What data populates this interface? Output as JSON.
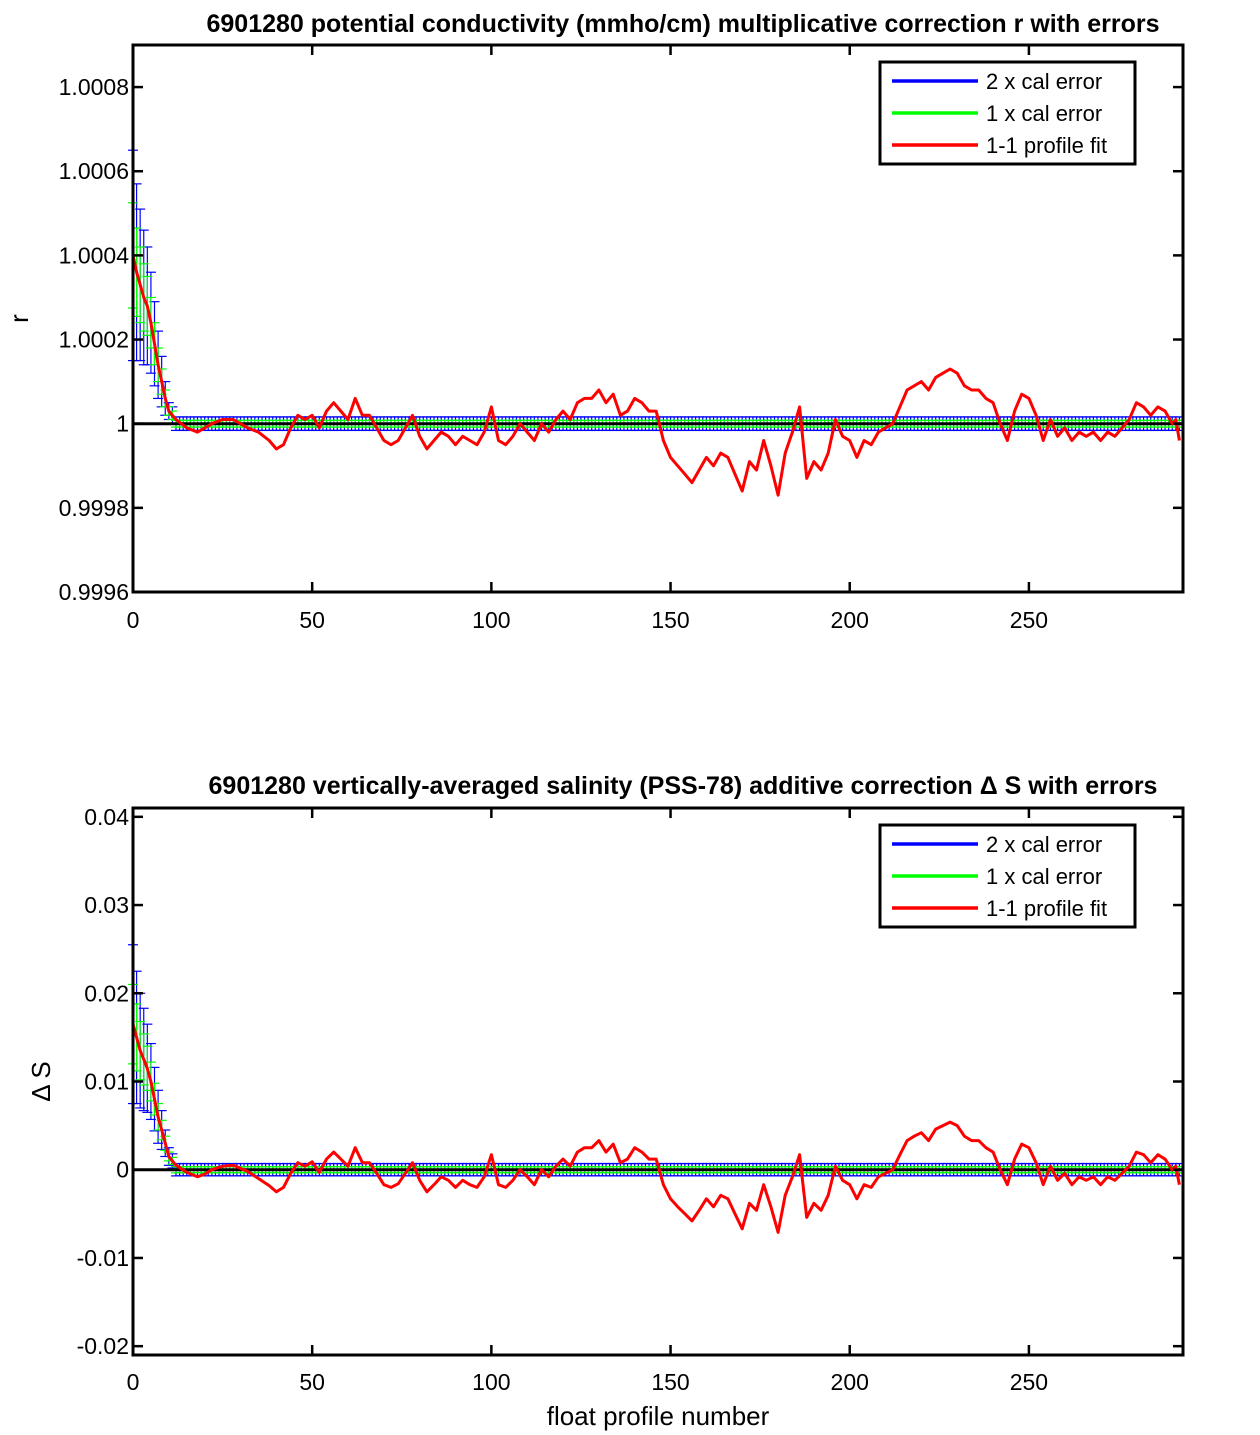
{
  "chart_data": [
    {
      "type": "line",
      "title": "6901280 potential conductivity (mmho/cm) multiplicative correction r with errors",
      "xlabel": "",
      "ylabel": "r",
      "xlim": [
        0,
        293
      ],
      "ylim": [
        0.9996,
        1.0009
      ],
      "xticks": [
        0,
        50,
        100,
        150,
        200,
        250
      ],
      "xtick_labels": [
        "0",
        "50",
        "100",
        "150",
        "200",
        "250"
      ],
      "yticks": [
        0.9996,
        0.9998,
        1,
        1.0002,
        1.0004,
        1.0006,
        1.0008
      ],
      "ytick_labels": [
        "0.9996",
        "0.9998",
        "1",
        "1.0002",
        "1.0004",
        "1.0006",
        "1.0008"
      ],
      "legend_position": "top-right",
      "grid": false,
      "reference_line": 1,
      "series": [
        {
          "name": "2 x cal error",
          "color": "#0000ff",
          "style": "errorbars",
          "half_width": [
            0.00025,
            0.00021,
            0.00018,
            0.00016,
            0.00014,
            0.00012,
            0.0001,
            8e-05,
            6e-05,
            4e-05,
            2e-05,
            2e-05
          ],
          "half_width_after": 1.6e-05
        },
        {
          "name": "1 x cal error",
          "color": "#00ff00",
          "style": "errorbars",
          "half_width": [
            0.000125,
            0.000105,
            9e-05,
            8e-05,
            7e-05,
            6e-05,
            5e-05,
            4e-05,
            3e-05,
            2e-05,
            1e-05,
            1e-05
          ],
          "half_width_after": 8e-06
        },
        {
          "name": "1-1 profile fit",
          "color": "#ff0000",
          "style": "line"
        }
      ],
      "fit": [
        [
          0,
          1.0004
        ],
        [
          1,
          1.00036
        ],
        [
          2,
          1.00033
        ],
        [
          3,
          1.0003
        ],
        [
          4,
          1.00028
        ],
        [
          5,
          1.00024
        ],
        [
          6,
          1.00019
        ],
        [
          7,
          1.00014
        ],
        [
          8,
          1.0001
        ],
        [
          9,
          1.00006
        ],
        [
          10,
          1.00003
        ],
        [
          12,
          1.00001
        ],
        [
          15,
          0.99999
        ],
        [
          18,
          0.99998
        ],
        [
          20,
          0.99999
        ],
        [
          22,
          1.0
        ],
        [
          25,
          1.00001
        ],
        [
          28,
          1.00001
        ],
        [
          32,
          0.99999
        ],
        [
          35,
          0.99998
        ],
        [
          38,
          0.99996
        ],
        [
          40,
          0.99994
        ],
        [
          42,
          0.99995
        ],
        [
          44,
          0.99999
        ],
        [
          46,
          1.00002
        ],
        [
          48,
          1.00001
        ],
        [
          50,
          1.00002
        ],
        [
          52,
          0.99999
        ],
        [
          54,
          1.00003
        ],
        [
          56,
          1.00005
        ],
        [
          58,
          1.00003
        ],
        [
          60,
          1.00001
        ],
        [
          62,
          1.00006
        ],
        [
          64,
          1.00002
        ],
        [
          66,
          1.00002
        ],
        [
          68,
          0.99999
        ],
        [
          70,
          0.99996
        ],
        [
          72,
          0.99995
        ],
        [
          74,
          0.99996
        ],
        [
          76,
          0.99999
        ],
        [
          78,
          1.00002
        ],
        [
          80,
          0.99997
        ],
        [
          82,
          0.99994
        ],
        [
          84,
          0.99996
        ],
        [
          86,
          0.99998
        ],
        [
          88,
          0.99997
        ],
        [
          90,
          0.99995
        ],
        [
          92,
          0.99997
        ],
        [
          94,
          0.99996
        ],
        [
          96,
          0.99995
        ],
        [
          98,
          0.99998
        ],
        [
          100,
          1.00004
        ],
        [
          102,
          0.99996
        ],
        [
          104,
          0.99995
        ],
        [
          106,
          0.99997
        ],
        [
          108,
          1.0
        ],
        [
          110,
          0.99998
        ],
        [
          112,
          0.99996
        ],
        [
          114,
          1.0
        ],
        [
          116,
          0.99998
        ],
        [
          118,
          1.00001
        ],
        [
          120,
          1.00003
        ],
        [
          122,
          1.00001
        ],
        [
          124,
          1.00005
        ],
        [
          126,
          1.00006
        ],
        [
          128,
          1.00006
        ],
        [
          130,
          1.00008
        ],
        [
          132,
          1.00005
        ],
        [
          134,
          1.00007
        ],
        [
          136,
          1.00002
        ],
        [
          138,
          1.00003
        ],
        [
          140,
          1.00006
        ],
        [
          142,
          1.00005
        ],
        [
          144,
          1.00003
        ],
        [
          146,
          1.00003
        ],
        [
          148,
          0.99996
        ],
        [
          150,
          0.99992
        ],
        [
          152,
          0.9999
        ],
        [
          154,
          0.99988
        ],
        [
          156,
          0.99986
        ],
        [
          158,
          0.99989
        ],
        [
          160,
          0.99992
        ],
        [
          162,
          0.9999
        ],
        [
          164,
          0.99993
        ],
        [
          166,
          0.99992
        ],
        [
          168,
          0.99988
        ],
        [
          170,
          0.99984
        ],
        [
          172,
          0.99991
        ],
        [
          174,
          0.99989
        ],
        [
          176,
          0.99996
        ],
        [
          178,
          0.9999
        ],
        [
          180,
          0.99983
        ],
        [
          182,
          0.99993
        ],
        [
          184,
          0.99998
        ],
        [
          186,
          1.00004
        ],
        [
          188,
          0.99987
        ],
        [
          190,
          0.99991
        ],
        [
          192,
          0.99989
        ],
        [
          194,
          0.99993
        ],
        [
          196,
          1.00001
        ],
        [
          198,
          0.99997
        ],
        [
          200,
          0.99996
        ],
        [
          202,
          0.99992
        ],
        [
          204,
          0.99996
        ],
        [
          206,
          0.99995
        ],
        [
          208,
          0.99998
        ],
        [
          210,
          0.99999
        ],
        [
          212,
          1.0
        ],
        [
          214,
          1.00004
        ],
        [
          216,
          1.00008
        ],
        [
          218,
          1.00009
        ],
        [
          220,
          1.0001
        ],
        [
          222,
          1.00008
        ],
        [
          224,
          1.00011
        ],
        [
          226,
          1.00012
        ],
        [
          228,
          1.00013
        ],
        [
          230,
          1.00012
        ],
        [
          232,
          1.00009
        ],
        [
          234,
          1.00008
        ],
        [
          236,
          1.00008
        ],
        [
          238,
          1.00006
        ],
        [
          240,
          1.00005
        ],
        [
          242,
          1.0
        ],
        [
          244,
          0.99996
        ],
        [
          246,
          1.00003
        ],
        [
          248,
          1.00007
        ],
        [
          250,
          1.00006
        ],
        [
          252,
          1.00002
        ],
        [
          254,
          0.99996
        ],
        [
          256,
          1.00001
        ],
        [
          258,
          0.99997
        ],
        [
          260,
          0.99999
        ],
        [
          262,
          0.99996
        ],
        [
          264,
          0.99998
        ],
        [
          266,
          0.99997
        ],
        [
          268,
          0.99998
        ],
        [
          270,
          0.99996
        ],
        [
          272,
          0.99998
        ],
        [
          274,
          0.99997
        ],
        [
          276,
          0.99999
        ],
        [
          278,
          1.00001
        ],
        [
          280,
          1.00005
        ],
        [
          282,
          1.00004
        ],
        [
          284,
          1.00002
        ],
        [
          286,
          1.00004
        ],
        [
          288,
          1.00003
        ],
        [
          290,
          1.0
        ],
        [
          291,
          1.00001
        ],
        [
          292,
          0.99996
        ]
      ]
    },
    {
      "type": "line",
      "title": "6901280 vertically-averaged salinity (PSS-78) additive correction Δ S with errors",
      "xlabel": "float profile number",
      "ylabel": "Δ S",
      "xlim": [
        0,
        293
      ],
      "ylim": [
        -0.021,
        0.041
      ],
      "xticks": [
        0,
        50,
        100,
        150,
        200,
        250
      ],
      "xtick_labels": [
        "0",
        "50",
        "100",
        "150",
        "200",
        "250"
      ],
      "yticks": [
        -0.02,
        -0.01,
        0,
        0.01,
        0.02,
        0.03,
        0.04
      ],
      "ytick_labels": [
        "-0.02",
        "-0.01",
        "0",
        "0.01",
        "0.02",
        "0.03",
        "0.04"
      ],
      "legend_position": "top-right",
      "grid": false,
      "reference_line": 0,
      "series": [
        {
          "name": "2 x cal error",
          "color": "#0000ff",
          "style": "errorbars",
          "half_width": [
            0.009,
            0.0075,
            0.0065,
            0.0058,
            0.005,
            0.0043,
            0.0036,
            0.003,
            0.0022,
            0.0015,
            0.001,
            0.0008
          ],
          "half_width_after": 0.0007
        },
        {
          "name": "1 x cal error",
          "color": "#00ff00",
          "style": "errorbars",
          "half_width": [
            0.0045,
            0.0038,
            0.0033,
            0.0029,
            0.0025,
            0.0022,
            0.0018,
            0.0015,
            0.0011,
            0.0008,
            0.0005,
            0.0004
          ],
          "half_width_after": 0.00035
        },
        {
          "name": "1-1 profile fit",
          "color": "#ff0000",
          "style": "line"
        }
      ],
      "fit": [
        [
          0,
          0.0165
        ],
        [
          1,
          0.015
        ],
        [
          2,
          0.0135
        ],
        [
          3,
          0.0125
        ],
        [
          4,
          0.0115
        ],
        [
          5,
          0.01
        ],
        [
          6,
          0.008
        ],
        [
          7,
          0.006
        ],
        [
          8,
          0.0045
        ],
        [
          9,
          0.003
        ],
        [
          10,
          0.0015
        ],
        [
          12,
          0.0005
        ],
        [
          15,
          -0.0003
        ],
        [
          18,
          -0.0008
        ],
        [
          20,
          -0.0005
        ],
        [
          22,
          0.0
        ],
        [
          25,
          0.0004
        ],
        [
          28,
          0.0005
        ],
        [
          32,
          -0.0002
        ],
        [
          35,
          -0.001
        ],
        [
          38,
          -0.0018
        ],
        [
          40,
          -0.0025
        ],
        [
          42,
          -0.002
        ],
        [
          44,
          -0.0004
        ],
        [
          46,
          0.0008
        ],
        [
          48,
          0.0004
        ],
        [
          50,
          0.0009
        ],
        [
          52,
          -0.0003
        ],
        [
          54,
          0.0012
        ],
        [
          56,
          0.002
        ],
        [
          58,
          0.0012
        ],
        [
          60,
          0.0004
        ],
        [
          62,
          0.0025
        ],
        [
          64,
          0.0008
        ],
        [
          66,
          0.0008
        ],
        [
          68,
          -0.0004
        ],
        [
          70,
          -0.0017
        ],
        [
          72,
          -0.002
        ],
        [
          74,
          -0.0016
        ],
        [
          76,
          -0.0004
        ],
        [
          78,
          0.0008
        ],
        [
          80,
          -0.0012
        ],
        [
          82,
          -0.0025
        ],
        [
          84,
          -0.0017
        ],
        [
          86,
          -0.0008
        ],
        [
          88,
          -0.0012
        ],
        [
          90,
          -0.002
        ],
        [
          92,
          -0.0012
        ],
        [
          94,
          -0.0017
        ],
        [
          96,
          -0.002
        ],
        [
          98,
          -0.0008
        ],
        [
          100,
          0.0017
        ],
        [
          102,
          -0.0017
        ],
        [
          104,
          -0.002
        ],
        [
          106,
          -0.0012
        ],
        [
          108,
          0.0
        ],
        [
          110,
          -0.0008
        ],
        [
          112,
          -0.0017
        ],
        [
          114,
          0.0
        ],
        [
          116,
          -0.0008
        ],
        [
          118,
          0.0004
        ],
        [
          120,
          0.0012
        ],
        [
          122,
          0.0004
        ],
        [
          124,
          0.002
        ],
        [
          126,
          0.0025
        ],
        [
          128,
          0.0025
        ],
        [
          130,
          0.0033
        ],
        [
          132,
          0.002
        ],
        [
          134,
          0.0029
        ],
        [
          136,
          0.0008
        ],
        [
          138,
          0.0012
        ],
        [
          140,
          0.0025
        ],
        [
          142,
          0.002
        ],
        [
          144,
          0.0012
        ],
        [
          146,
          0.0012
        ],
        [
          148,
          -0.0017
        ],
        [
          150,
          -0.0033
        ],
        [
          152,
          -0.0042
        ],
        [
          154,
          -0.005
        ],
        [
          156,
          -0.0058
        ],
        [
          158,
          -0.0046
        ],
        [
          160,
          -0.0033
        ],
        [
          162,
          -0.0042
        ],
        [
          164,
          -0.0029
        ],
        [
          166,
          -0.0033
        ],
        [
          168,
          -0.005
        ],
        [
          170,
          -0.0067
        ],
        [
          172,
          -0.0038
        ],
        [
          174,
          -0.0046
        ],
        [
          176,
          -0.0017
        ],
        [
          178,
          -0.0042
        ],
        [
          180,
          -0.0071
        ],
        [
          182,
          -0.0029
        ],
        [
          184,
          -0.0008
        ],
        [
          186,
          0.0017
        ],
        [
          188,
          -0.0054
        ],
        [
          190,
          -0.0038
        ],
        [
          192,
          -0.0046
        ],
        [
          194,
          -0.0029
        ],
        [
          196,
          0.0004
        ],
        [
          198,
          -0.0012
        ],
        [
          200,
          -0.0017
        ],
        [
          202,
          -0.0033
        ],
        [
          204,
          -0.0017
        ],
        [
          206,
          -0.002
        ],
        [
          208,
          -0.0008
        ],
        [
          210,
          -0.0004
        ],
        [
          212,
          0.0
        ],
        [
          214,
          0.0017
        ],
        [
          216,
          0.0033
        ],
        [
          218,
          0.0038
        ],
        [
          220,
          0.0042
        ],
        [
          222,
          0.0033
        ],
        [
          224,
          0.0046
        ],
        [
          226,
          0.005
        ],
        [
          228,
          0.0054
        ],
        [
          230,
          0.005
        ],
        [
          232,
          0.0038
        ],
        [
          234,
          0.0033
        ],
        [
          236,
          0.0033
        ],
        [
          238,
          0.0025
        ],
        [
          240,
          0.002
        ],
        [
          242,
          0.0
        ],
        [
          244,
          -0.0017
        ],
        [
          246,
          0.0012
        ],
        [
          248,
          0.0029
        ],
        [
          250,
          0.0025
        ],
        [
          252,
          0.0008
        ],
        [
          254,
          -0.0017
        ],
        [
          256,
          0.0004
        ],
        [
          258,
          -0.0012
        ],
        [
          260,
          -0.0004
        ],
        [
          262,
          -0.0017
        ],
        [
          264,
          -0.0008
        ],
        [
          266,
          -0.0012
        ],
        [
          268,
          -0.0008
        ],
        [
          270,
          -0.0017
        ],
        [
          272,
          -0.0008
        ],
        [
          274,
          -0.0012
        ],
        [
          276,
          -0.0004
        ],
        [
          278,
          0.0004
        ],
        [
          280,
          0.002
        ],
        [
          282,
          0.0017
        ],
        [
          284,
          0.0008
        ],
        [
          286,
          0.0017
        ],
        [
          288,
          0.0012
        ],
        [
          290,
          0.0
        ],
        [
          291,
          0.0004
        ],
        [
          292,
          -0.0017
        ]
      ]
    }
  ]
}
